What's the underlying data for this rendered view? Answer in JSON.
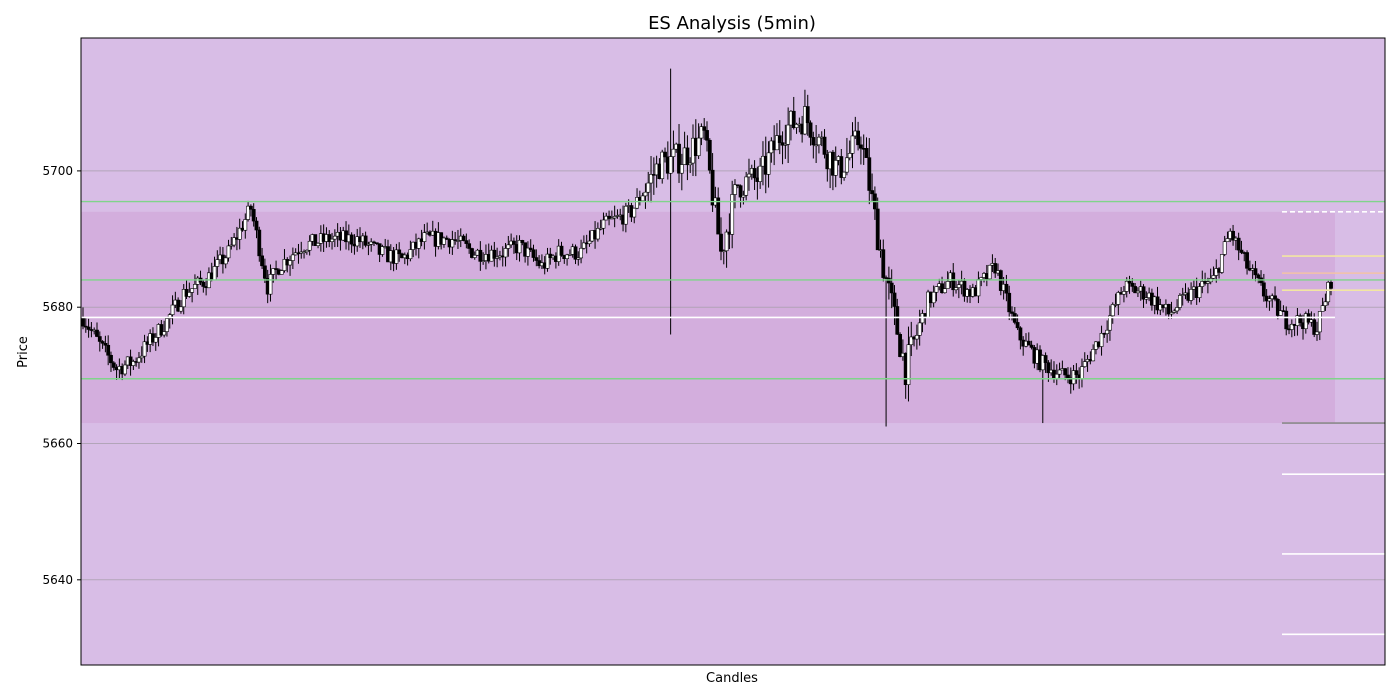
{
  "chart_data": {
    "type": "candlestick",
    "title": "ES Analysis (5min)",
    "xlabel": "Candles",
    "ylabel": "Price",
    "ylim": [
      5627.5,
      5719.5
    ],
    "yticks": [
      5640,
      5660,
      5680,
      5700
    ],
    "grid": "horizontal",
    "legend": "none",
    "colors": {
      "background": "#d8bde6",
      "band": "#d3aedd",
      "up_body": "#ffffff",
      "down_body": "#000000",
      "wick": "#000000",
      "grid": "#a9a0ae",
      "green_level": "#7fd48a",
      "white_level": "#ffffff",
      "yellow_level": "#f2e6a2",
      "orange_level": "#f3c3a6",
      "gray_level": "#8a8a8a"
    },
    "band_zones": [
      {
        "y0": 5663,
        "y1": 5694,
        "from_candle": 0,
        "to_candle": 263
      }
    ],
    "levels": [
      {
        "price": 5695.5,
        "kind": "green",
        "span": "full"
      },
      {
        "price": 5684.0,
        "kind": "green",
        "span": "full"
      },
      {
        "price": 5669.5,
        "kind": "green",
        "span": "full"
      },
      {
        "price": 5678.5,
        "kind": "white",
        "span": "main"
      },
      {
        "price": 5694.0,
        "kind": "white-dashed",
        "span": "right"
      },
      {
        "price": 5687.5,
        "kind": "yellow",
        "span": "right"
      },
      {
        "price": 5685.0,
        "kind": "orange",
        "span": "right"
      },
      {
        "price": 5682.5,
        "kind": "yellow",
        "span": "right"
      },
      {
        "price": 5663.0,
        "kind": "gray",
        "span": "right"
      },
      {
        "price": 5655.5,
        "kind": "white",
        "span": "right"
      },
      {
        "price": 5643.8,
        "kind": "white",
        "span": "right"
      },
      {
        "price": 5632.0,
        "kind": "white",
        "span": "right"
      }
    ],
    "total_slots": 290,
    "price_path": [
      [
        0,
        5678.5
      ],
      [
        6,
        5674.5
      ],
      [
        12,
        5671
      ],
      [
        18,
        5672
      ],
      [
        24,
        5675
      ],
      [
        30,
        5678
      ],
      [
        36,
        5682
      ],
      [
        44,
        5684
      ],
      [
        52,
        5688
      ],
      [
        60,
        5694.5
      ],
      [
        66,
        5683
      ],
      [
        70,
        5686
      ],
      [
        78,
        5689
      ],
      [
        88,
        5690
      ],
      [
        98,
        5690
      ],
      [
        106,
        5688
      ],
      [
        114,
        5687
      ],
      [
        122,
        5690
      ],
      [
        132,
        5690
      ],
      [
        140,
        5688
      ],
      [
        150,
        5688
      ],
      [
        156,
        5689
      ],
      [
        164,
        5686
      ],
      [
        170,
        5688
      ],
      [
        178,
        5688
      ],
      [
        186,
        5692
      ],
      [
        196,
        5694
      ],
      [
        206,
        5701
      ],
      [
        214,
        5702
      ],
      [
        222,
        5705
      ],
      [
        228,
        5688
      ],
      [
        234,
        5698
      ],
      [
        242,
        5699
      ],
      [
        250,
        5706
      ],
      [
        258,
        5708
      ],
      [
        264,
        5704
      ],
      [
        270,
        5700
      ],
      [
        278,
        5705
      ],
      [
        286,
        5686
      ],
      [
        294,
        5671
      ],
      [
        302,
        5681
      ],
      [
        310,
        5684
      ],
      [
        318,
        5682
      ],
      [
        326,
        5686
      ],
      [
        334,
        5676
      ],
      [
        342,
        5672
      ],
      [
        350,
        5670
      ],
      [
        356,
        5670
      ],
      [
        364,
        5676
      ],
      [
        372,
        5683
      ],
      [
        380,
        5682
      ],
      [
        388,
        5679
      ],
      [
        396,
        5682
      ],
      [
        404,
        5684
      ],
      [
        410,
        5691
      ],
      [
        416,
        5686
      ],
      [
        422,
        5682
      ],
      [
        430,
        5678
      ],
      [
        436,
        5678
      ],
      [
        441,
        5677
      ],
      [
        446,
        5684
      ]
    ],
    "candle_count": 447,
    "spikes": [
      {
        "at": 210,
        "high": 5715,
        "low": 5676
      },
      {
        "at": 287,
        "low": 5662.5
      },
      {
        "at": 343,
        "low": 5663
      }
    ]
  }
}
